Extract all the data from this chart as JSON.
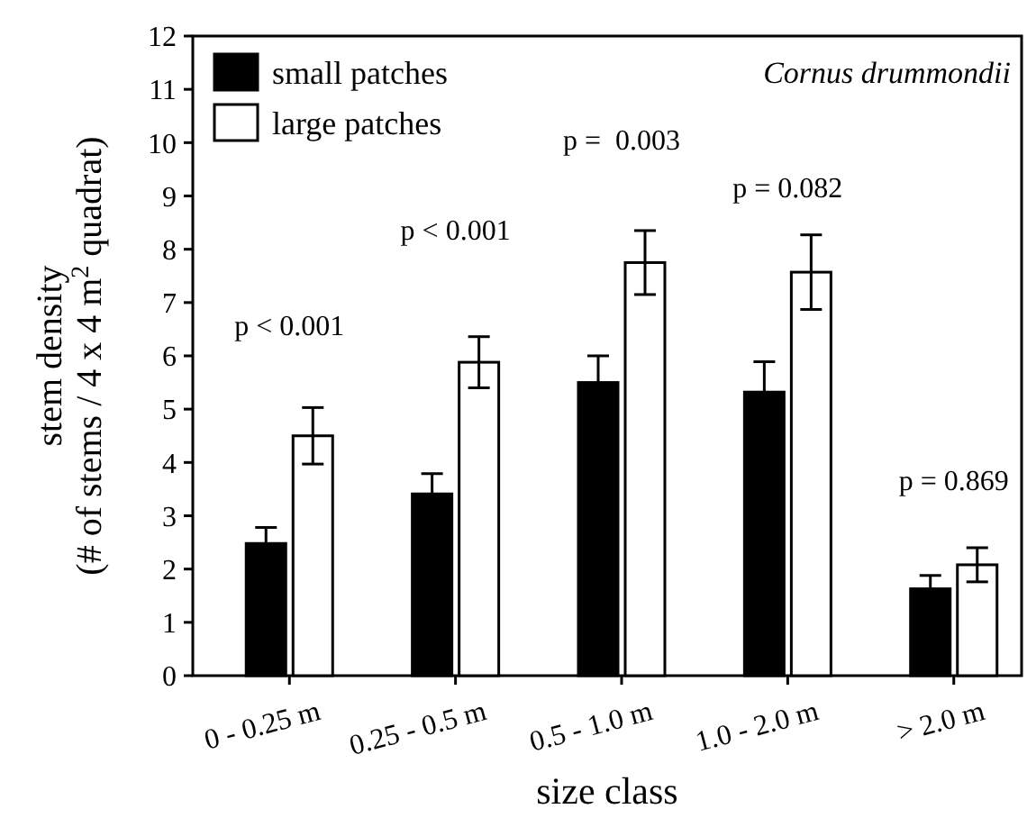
{
  "chart_data": {
    "type": "bar",
    "xlabel": "size class",
    "ylabel": "stem density\n(# of stems / 4 x 4 m$^{2}$ quadrat)",
    "categories": [
      "0 - 0.25 m",
      "0.25 - 0.5 m",
      "0.5 - 1.0 m",
      "1.0 - 2.0 m",
      "> 2.0 m"
    ],
    "series": [
      {
        "name": "small patches",
        "color": "#000000",
        "values": [
          2.48,
          3.41,
          5.5,
          5.32,
          1.63
        ],
        "errors": [
          0.3,
          0.38,
          0.5,
          0.57,
          0.25
        ]
      },
      {
        "name": "large patches",
        "color": "#ffffff",
        "values": [
          4.5,
          5.88,
          7.75,
          7.57,
          2.08
        ],
        "errors": [
          0.53,
          0.48,
          0.6,
          0.7,
          0.32
        ]
      }
    ],
    "ylim": [
      0,
      12
    ],
    "yticks": [
      0,
      1,
      2,
      3,
      4,
      5,
      6,
      7,
      8,
      9,
      10,
      11,
      12
    ],
    "grid": false,
    "legend": "top left",
    "annotations": [
      "Cornus drummondii",
      "p < 0.001",
      "p < 0.001",
      "p =  0.003",
      "p = 0.082",
      "p = 0.869"
    ]
  }
}
